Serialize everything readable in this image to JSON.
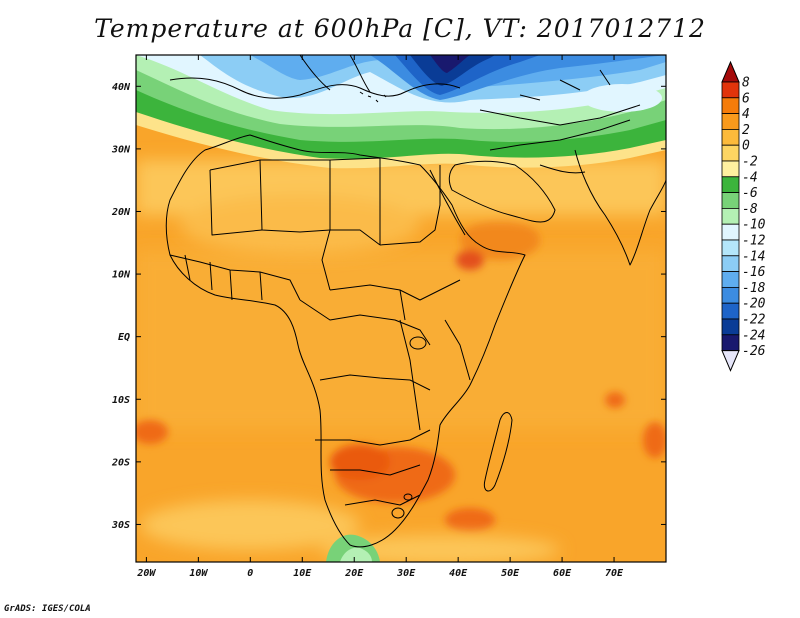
{
  "title": "Temperature at 600hPa [C], VT: 2017012712",
  "credit": "GrADS: IGES/COLA",
  "map": {
    "lat_range": [
      -36,
      45
    ],
    "lon_range": [
      -22,
      80
    ],
    "lat_ticks": [
      {
        "v": 40,
        "t": "40N"
      },
      {
        "v": 30,
        "t": "30N"
      },
      {
        "v": 20,
        "t": "20N"
      },
      {
        "v": 10,
        "t": "10N"
      },
      {
        "v": 0,
        "t": "EQ"
      },
      {
        "v": -10,
        "t": "10S"
      },
      {
        "v": -20,
        "t": "20S"
      },
      {
        "v": -30,
        "t": "30S"
      }
    ],
    "lon_ticks": [
      {
        "v": -20,
        "t": "20W"
      },
      {
        "v": -10,
        "t": "10W"
      },
      {
        "v": 0,
        "t": "0"
      },
      {
        "v": 10,
        "t": "10E"
      },
      {
        "v": 20,
        "t": "20E"
      },
      {
        "v": 30,
        "t": "30E"
      },
      {
        "v": 40,
        "t": "40E"
      },
      {
        "v": 50,
        "t": "50E"
      },
      {
        "v": 60,
        "t": "60E"
      },
      {
        "v": 70,
        "t": "70E"
      }
    ]
  },
  "colorbar": {
    "labels": [
      "8",
      "6",
      "4",
      "2",
      "0",
      "-2",
      "-4",
      "-6",
      "-8",
      "-10",
      "-12",
      "-14",
      "-16",
      "-18",
      "-20",
      "-22",
      "-24",
      "-26"
    ],
    "colors": [
      "#a50a0a",
      "#e1340b",
      "#f57c0a",
      "#f99a1c",
      "#fcba3b",
      "#fdd562",
      "#fff0a0",
      "#3cb43c",
      "#78d278",
      "#b4f0b4",
      "#e1f6ff",
      "#b4e6fa",
      "#8ccdf5",
      "#5fadef",
      "#3c8ce1",
      "#1e64c8",
      "#0a3c96",
      "#19196e",
      "#e6e6fa"
    ]
  },
  "field_legend": {
    "cold_north": "blue",
    "warm_south": "orange"
  }
}
